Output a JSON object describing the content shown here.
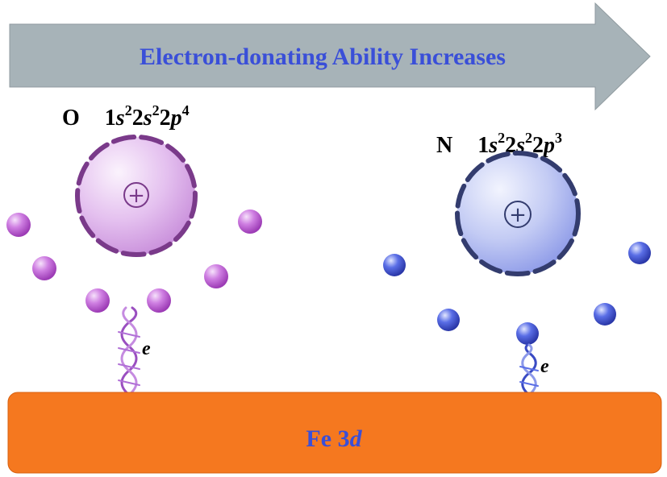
{
  "arrow": {
    "label": "Electron-donating Ability Increases",
    "color": "#a7b3b8"
  },
  "atoms": [
    {
      "symbol": "O",
      "config_parts": [
        "1",
        "s",
        "2",
        "2",
        "s",
        "2",
        "2",
        "p",
        "4"
      ],
      "nucleus_symbol": "+",
      "electron_count": 6,
      "color": "#d9a8e6",
      "electron_color": "#c061d6",
      "electron_label": "e"
    },
    {
      "symbol": "N",
      "config_parts": [
        "1",
        "s",
        "2",
        "2",
        "s",
        "2",
        "2",
        "p",
        "3"
      ],
      "nucleus_symbol": "+",
      "electron_count": 5,
      "color": "#b9c2f0",
      "electron_color": "#4b5fe0",
      "electron_label": "e"
    }
  ],
  "metal": {
    "label_main": "Fe 3",
    "label_orbital": "d",
    "color": "#f5781f"
  }
}
